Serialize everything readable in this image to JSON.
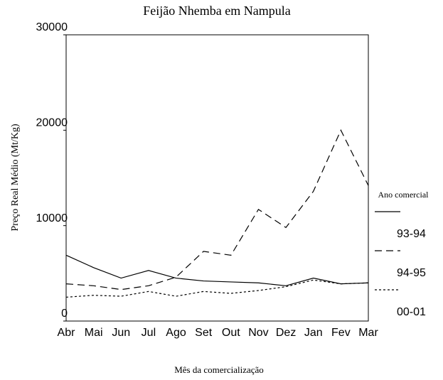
{
  "chart_data": {
    "type": "line",
    "title": "Feijão Nhemba em Nampula",
    "x_label": "Mês da comercialização",
    "y_label": "Preço Real Médio (Mt/Kg)",
    "legend_title": "Ano comercial",
    "categories": [
      "Abr",
      "Mai",
      "Jun",
      "Jul",
      "Ago",
      "Set",
      "Out",
      "Nov",
      "Dez",
      "Jan",
      "Fev",
      "Mar"
    ],
    "series": [
      {
        "name": "93-94",
        "color": "#000000",
        "dash": "none",
        "values": [
          6900,
          5600,
          4500,
          5300,
          4500,
          4200,
          4100,
          4000,
          3700,
          4500,
          3900,
          4000
        ]
      },
      {
        "name": "94-95",
        "color": "#000000",
        "dash": "10,6",
        "values": [
          3900,
          3700,
          3300,
          3700,
          4600,
          7300,
          6900,
          11700,
          9800,
          13600,
          20000,
          14200
        ]
      },
      {
        "name": "00-01",
        "color": "#000000",
        "dash": "3,3",
        "values": [
          2500,
          2700,
          2600,
          3100,
          2600,
          3100,
          2900,
          3200,
          3600,
          4300,
          3900,
          4000
        ]
      }
    ],
    "ylim": [
      0,
      30000
    ],
    "yticks": [
      0,
      10000,
      20000,
      30000
    ]
  }
}
